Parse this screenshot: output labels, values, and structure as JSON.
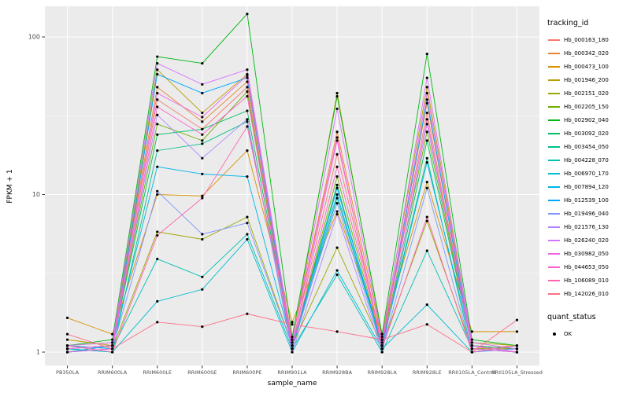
{
  "chart": {
    "ylabel": "FPKM + 1",
    "xlabel": "sample_name"
  },
  "legend": {
    "tracking_title": "tracking_id",
    "quant_title": "quant_status",
    "quant_ok_label": "OK",
    "quant_ok_color": "#000000"
  },
  "chart_data": {
    "type": "line",
    "title": "",
    "xlabel": "sample_name",
    "ylabel": "FPKM + 1",
    "y_scale": "log10",
    "y_ticks": [
      1,
      10,
      100
    ],
    "y_minor_ticks": [
      3.1623,
      31.623
    ],
    "ylim": [
      0.82,
      156
    ],
    "grid": true,
    "legend_position": "right",
    "panel_bg": "#EBEBEB",
    "grid_color": "#FFFFFF",
    "tick_label_color": "#4D4D4D",
    "point_color": "#000000",
    "categories": [
      "PB350LA",
      "RRIM600LA",
      "RRIM600LE",
      "RRIM600SE",
      "RRIM600PE",
      "RRIM901LA",
      "RRIM928BA",
      "RRIM928LA",
      "RRIM928LE",
      "RRII105LA_Control",
      "RRII105LA_Stressed"
    ],
    "series": [
      {
        "name": "Hb_000163_180",
        "color": "#F8766D",
        "values": [
          1.05,
          1.1,
          40,
          26,
          48,
          1.1,
          18,
          1.15,
          33,
          1.05,
          1.1
        ]
      },
      {
        "name": "Hb_000342_020",
        "color": "#E9842C",
        "values": [
          1.1,
          1.15,
          48,
          29,
          52,
          1.2,
          25,
          1.2,
          38,
          1.1,
          1.05
        ]
      },
      {
        "name": "Hb_000473_100",
        "color": "#D69100",
        "values": [
          1.65,
          1.3,
          10,
          9.8,
          19,
          1.55,
          7.8,
          1.3,
          12,
          1.35,
          1.35
        ]
      },
      {
        "name": "Hb_001946_200",
        "color": "#BC9D00",
        "values": [
          1.2,
          1.1,
          62,
          33,
          58,
          1.15,
          44,
          1.25,
          48,
          1.15,
          1.1
        ]
      },
      {
        "name": "Hb_002151_020",
        "color": "#9CA700",
        "values": [
          1.1,
          1.05,
          5.8,
          5.2,
          7.2,
          1.1,
          4.6,
          1.1,
          6.8,
          1.05,
          1.05
        ]
      },
      {
        "name": "Hb_002205_150",
        "color": "#6FB000",
        "values": [
          1.05,
          1.1,
          28,
          22,
          45,
          1.05,
          13,
          1.1,
          25,
          1.1,
          1.0
        ]
      },
      {
        "name": "Hb_002902_040",
        "color": "#00B813",
        "values": [
          1.1,
          1.2,
          75,
          68,
          140,
          1.25,
          42,
          1.3,
          78,
          1.2,
          1.1
        ]
      },
      {
        "name": "Hb_003092_020",
        "color": "#00BD61",
        "values": [
          1.0,
          1.1,
          24,
          26,
          34,
          1.1,
          11.5,
          1.05,
          22,
          1.1,
          1.05
        ]
      },
      {
        "name": "Hb_003454_050",
        "color": "#00C08E",
        "values": [
          1.05,
          1.0,
          19,
          21,
          29,
          1.05,
          9.5,
          1.1,
          17,
          1.0,
          1.05
        ]
      },
      {
        "name": "Hb_004228_070",
        "color": "#00C0B4",
        "values": [
          1.0,
          1.05,
          3.9,
          3.0,
          5.6,
          1.05,
          3.1,
          1.0,
          4.4,
          1.05,
          1.0
        ]
      },
      {
        "name": "Hb_006970_170",
        "color": "#00BDD2",
        "values": [
          1.05,
          1.0,
          2.1,
          2.5,
          5.2,
          1.0,
          3.3,
          1.05,
          2.0,
          1.0,
          1.1
        ]
      },
      {
        "name": "Hb_007894_120",
        "color": "#00B5EC",
        "values": [
          1.0,
          1.1,
          15,
          13.5,
          13,
          1.1,
          10,
          1.1,
          16,
          1.1,
          1.0
        ]
      },
      {
        "name": "Hb_012539_100",
        "color": "#00A7FF",
        "values": [
          1.1,
          1.05,
          58,
          44,
          55,
          1.05,
          11,
          1.1,
          40,
          1.05,
          1.0
        ]
      },
      {
        "name": "Hb_019496_040",
        "color": "#7F96FF",
        "values": [
          1.0,
          1.05,
          10.5,
          5.6,
          6.6,
          1.1,
          8.8,
          1.05,
          11,
          1.0,
          1.05
        ]
      },
      {
        "name": "Hb_021576_130",
        "color": "#B284FF",
        "values": [
          1.05,
          1.1,
          32,
          17,
          30,
          1.0,
          7.5,
          1.0,
          28,
          1.1,
          1.0
        ]
      },
      {
        "name": "Hb_026240_020",
        "color": "#D674FE",
        "values": [
          1.1,
          1.15,
          68,
          50,
          62,
          1.15,
          35,
          1.2,
          55,
          1.15,
          1.05
        ]
      },
      {
        "name": "Hb_030982_050",
        "color": "#EF67EB",
        "values": [
          1.05,
          1.1,
          44,
          31,
          57,
          1.1,
          22,
          1.1,
          44,
          1.1,
          1.0
        ]
      },
      {
        "name": "Hb_044653_050",
        "color": "#FE61CF",
        "values": [
          1.0,
          1.05,
          36,
          24,
          42,
          1.05,
          15,
          1.15,
          30,
          1.05,
          1.0
        ]
      },
      {
        "name": "Hb_106089_010",
        "color": "#FF65AE",
        "values": [
          1.1,
          1.0,
          5.5,
          9.5,
          27,
          1.2,
          23,
          1.05,
          7.2,
          1.0,
          1.1
        ]
      },
      {
        "name": "Hb_142026_010",
        "color": "#FD6F88",
        "values": [
          1.3,
          1.05,
          1.55,
          1.45,
          1.75,
          1.5,
          1.35,
          1.2,
          1.5,
          1.0,
          1.6
        ]
      }
    ],
    "quant_status": {
      "label": "OK",
      "marker": "point",
      "color": "#000000"
    }
  }
}
